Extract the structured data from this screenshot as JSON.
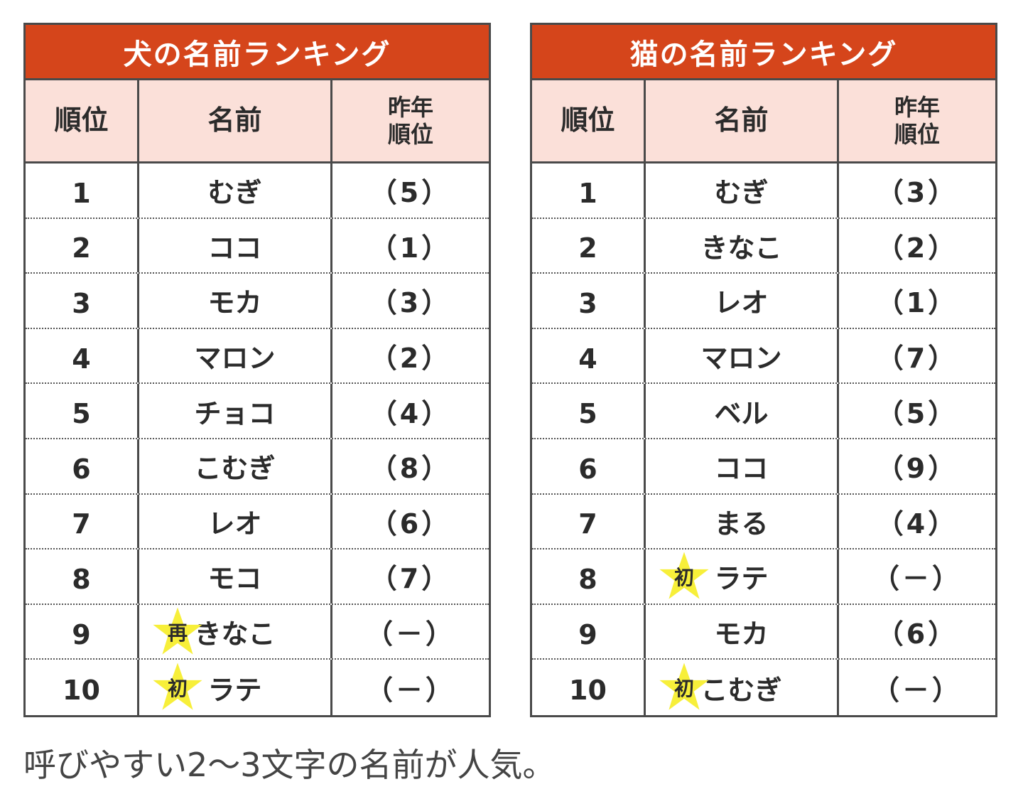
{
  "dog_table": {
    "title": "犬の名前ランキング",
    "headers": {
      "rank": "順位",
      "name": "名前",
      "prev": "昨年\n順位"
    },
    "rows": [
      {
        "rank": "1",
        "name": "むぎ",
        "prev": "（5）",
        "badge": ""
      },
      {
        "rank": "2",
        "name": "ココ",
        "prev": "（1）",
        "badge": ""
      },
      {
        "rank": "3",
        "name": "モカ",
        "prev": "（3）",
        "badge": ""
      },
      {
        "rank": "4",
        "name": "マロン",
        "prev": "（2）",
        "badge": ""
      },
      {
        "rank": "5",
        "name": "チョコ",
        "prev": "（4）",
        "badge": ""
      },
      {
        "rank": "6",
        "name": "こむぎ",
        "prev": "（8）",
        "badge": ""
      },
      {
        "rank": "7",
        "name": "レオ",
        "prev": "（6）",
        "badge": ""
      },
      {
        "rank": "8",
        "name": "モコ",
        "prev": "（7）",
        "badge": ""
      },
      {
        "rank": "9",
        "name": "きなこ",
        "prev": "（－）",
        "badge": "再"
      },
      {
        "rank": "10",
        "name": "ラテ",
        "prev": "（－）",
        "badge": "初"
      }
    ]
  },
  "cat_table": {
    "title": "猫の名前ランキング",
    "headers": {
      "rank": "順位",
      "name": "名前",
      "prev": "昨年\n順位"
    },
    "rows": [
      {
        "rank": "1",
        "name": "むぎ",
        "prev": "（3）",
        "badge": ""
      },
      {
        "rank": "2",
        "name": "きなこ",
        "prev": "（2）",
        "badge": ""
      },
      {
        "rank": "3",
        "name": "レオ",
        "prev": "（1）",
        "badge": ""
      },
      {
        "rank": "4",
        "name": "マロン",
        "prev": "（7）",
        "badge": ""
      },
      {
        "rank": "5",
        "name": "ベル",
        "prev": "（5）",
        "badge": ""
      },
      {
        "rank": "6",
        "name": "ココ",
        "prev": "（9）",
        "badge": ""
      },
      {
        "rank": "7",
        "name": "まる",
        "prev": "（4）",
        "badge": ""
      },
      {
        "rank": "8",
        "name": "ラテ",
        "prev": "（－）",
        "badge": "初"
      },
      {
        "rank": "9",
        "name": "モカ",
        "prev": "（6）",
        "badge": ""
      },
      {
        "rank": "10",
        "name": "こむぎ",
        "prev": "（－）",
        "badge": "初"
      }
    ]
  },
  "caption": "呼びやすい2〜3文字の名前が人気。",
  "colors": {
    "title_bg": "#d5451b",
    "header_bg": "#fbe0d9",
    "star": "#f7ef3a",
    "border": "#4a4a4a"
  }
}
